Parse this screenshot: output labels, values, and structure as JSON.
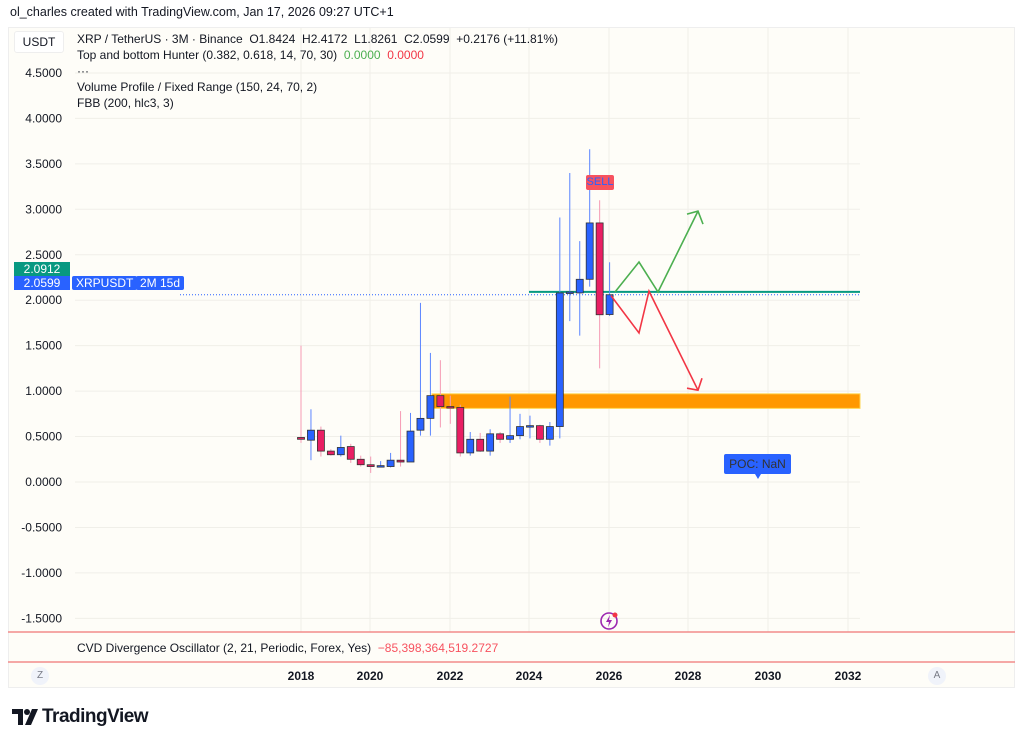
{
  "credit": "ol_charles created with TradingView.com, Jan 17, 2026 09:27 UTC+1",
  "currency_button": "USDT",
  "legend": {
    "symbol_line": "XRP / TetherUS · 3M · Binance",
    "open": "O1.8424",
    "high": "H2.4172",
    "low": "L1.8261",
    "close": "C2.0599",
    "change": "+0.2176 (+11.81%)",
    "indicator1": "Top and bottom Hunter (0.382, 0.618, 14, 70, 30)",
    "indicator1_v1": "0.0000",
    "indicator1_v2": "0.0000",
    "more": "···",
    "indicator2": "Volume Profile / Fixed Range (150, 24, 70, 2)",
    "indicator3": "FBB (200, hlc3, 3)"
  },
  "price_labels": {
    "level": "2.0912",
    "last": "2.0599",
    "countdown": "2M 15d",
    "symbol": "XRPUSDT"
  },
  "sell_label": "SELL",
  "poc_label": "POC: NaN",
  "cvd": {
    "name": "CVD Divergence Oscillator (2, 21, Periodic, Forex, Yes)",
    "value": "−85,398,364,519.2727"
  },
  "axis_buttons": {
    "left": "Z",
    "right": "A"
  },
  "brand": "TradingView",
  "colors": {
    "up": "#2962ff",
    "down": "#e91e63",
    "level": "#089981",
    "zone": "#ff9800",
    "bull_path": "#4caf50",
    "bear_path": "#f23645"
  },
  "chart_data": {
    "type": "candlestick",
    "interval": "3M",
    "ylim": [
      -1.6,
      4.6
    ],
    "yticks": [
      "4.5000",
      "4.0000",
      "3.5000",
      "3.0000",
      "2.5000",
      "2.0000",
      "1.5000",
      "1.0000",
      "0.5000",
      "0.0000",
      "-0.5000",
      "-1.0000",
      "-1.5000"
    ],
    "ytick_values": [
      4.5,
      4.0,
      3.5,
      3.0,
      2.5,
      2.0,
      1.5,
      1.0,
      0.5,
      0.0,
      -0.5,
      -1.0,
      -1.5
    ],
    "xticks": [
      "2018",
      "2020",
      "2022",
      "2024",
      "2026",
      "2028",
      "2030",
      "2032"
    ],
    "grid": true,
    "ohlc": [
      [
        0.49,
        1.5,
        0.43,
        0.47
      ],
      [
        0.46,
        0.8,
        0.24,
        0.57
      ],
      [
        0.57,
        0.61,
        0.28,
        0.34
      ],
      [
        0.34,
        0.36,
        0.29,
        0.3
      ],
      [
        0.3,
        0.51,
        0.28,
        0.38
      ],
      [
        0.39,
        0.42,
        0.21,
        0.25
      ],
      [
        0.25,
        0.29,
        0.17,
        0.19
      ],
      [
        0.19,
        0.28,
        0.1,
        0.17
      ],
      [
        0.17,
        0.23,
        0.16,
        0.18
      ],
      [
        0.17,
        0.32,
        0.16,
        0.24
      ],
      [
        0.24,
        0.78,
        0.17,
        0.22
      ],
      [
        0.22,
        0.76,
        0.22,
        0.56
      ],
      [
        0.57,
        1.97,
        0.51,
        0.7
      ],
      [
        0.7,
        1.42,
        0.51,
        0.95
      ],
      [
        0.95,
        1.34,
        0.6,
        0.83
      ],
      [
        0.83,
        0.95,
        0.64,
        0.82
      ],
      [
        0.82,
        0.85,
        0.28,
        0.32
      ],
      [
        0.32,
        0.55,
        0.29,
        0.47
      ],
      [
        0.47,
        0.54,
        0.33,
        0.34
      ],
      [
        0.34,
        0.58,
        0.29,
        0.53
      ],
      [
        0.53,
        0.55,
        0.43,
        0.47
      ],
      [
        0.47,
        0.94,
        0.43,
        0.51
      ],
      [
        0.51,
        0.75,
        0.47,
        0.61
      ],
      [
        0.61,
        0.73,
        0.48,
        0.62
      ],
      [
        0.62,
        0.63,
        0.43,
        0.47
      ],
      [
        0.47,
        0.66,
        0.4,
        0.61
      ],
      [
        0.61,
        2.91,
        0.48,
        2.08
      ],
      [
        2.08,
        3.4,
        1.77,
        2.09
      ],
      [
        2.08,
        2.65,
        1.61,
        2.23
      ],
      [
        2.23,
        3.66,
        2.15,
        2.85
      ],
      [
        2.85,
        3.1,
        1.25,
        1.84
      ],
      [
        1.8424,
        2.4172,
        1.8261,
        2.0599
      ]
    ],
    "horizontal_level": 2.0912,
    "last_price": 2.0599,
    "zone": [
      0.81,
      0.97
    ],
    "bull_projection": [
      2.09,
      2.42,
      2.09,
      2.98
    ],
    "bear_projection": [
      2.05,
      1.64,
      2.1,
      1.01
    ]
  }
}
